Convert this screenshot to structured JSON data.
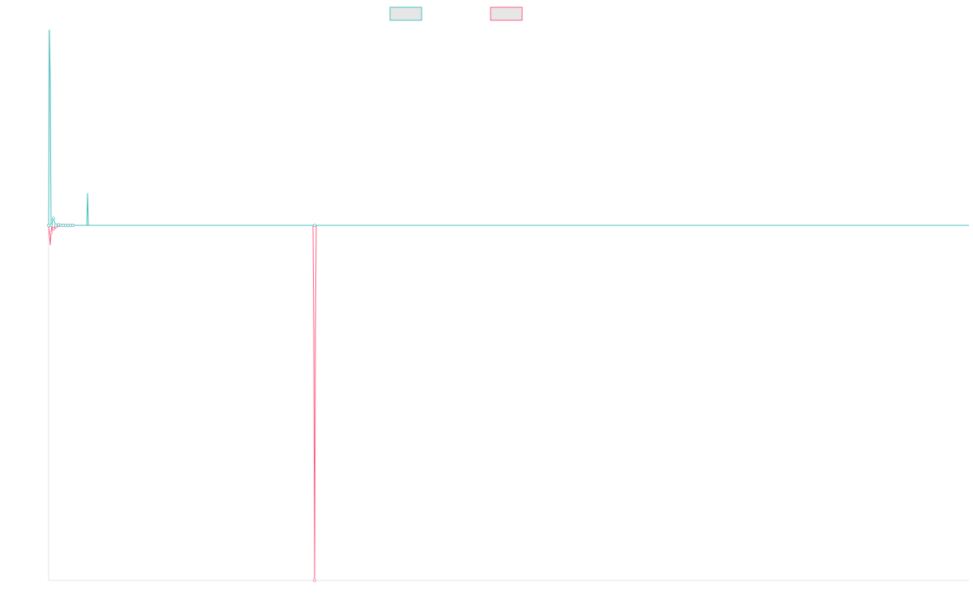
{
  "chart_data": {
    "type": "line",
    "title": "",
    "xlabel": "",
    "ylabel": "",
    "grid": false,
    "legend_position": "top-center",
    "x": [
      0,
      1,
      2,
      3,
      4,
      5,
      6,
      7,
      8,
      9,
      10,
      11,
      12,
      13,
      14,
      15,
      16,
      17,
      18,
      19,
      20,
      21,
      22,
      23,
      24,
      25,
      26,
      27,
      28,
      29,
      30,
      40,
      60,
      80,
      100,
      120,
      140,
      160,
      180,
      200,
      220,
      240,
      260,
      280,
      300,
      320,
      326,
      327,
      328,
      329,
      330,
      340,
      360,
      400,
      500,
      600,
      700,
      800,
      900,
      1000,
      1100,
      1135
    ],
    "xlim": [
      0,
      1135
    ],
    "ylim": [
      -1.0,
      0.55
    ],
    "series": [
      {
        "color": "#4bc0c0",
        "values": [
          0.0,
          0.55,
          0.4,
          0.0,
          -0.005,
          0.02,
          0.02,
          0.01,
          0.005,
          0.0,
          0.0,
          0.0,
          0.003,
          0.002,
          0.0,
          0.0,
          0.0,
          0.0,
          0.0,
          0.0,
          0.0,
          0.0,
          0.0,
          0.0,
          0.0,
          0.0,
          0.0,
          0.0,
          0.0,
          0.0,
          0.0,
          0.0,
          0.0,
          0.0,
          0.0,
          0.0,
          0.0,
          0.0,
          0.0,
          0.0,
          0.0,
          0.0,
          0.0,
          0.0,
          0.0,
          0.0,
          0.0,
          0.0,
          0.0,
          0.0,
          0.0,
          0.0,
          0.0,
          0.0,
          0.0,
          0.0,
          0.0,
          0.0,
          0.0,
          0.0,
          0.0,
          0.0
        ]
      },
      {
        "color": "#ff6384",
        "values": [
          0.0,
          -0.03,
          -0.055,
          -0.02,
          0.0,
          -0.015,
          -0.01,
          -0.005,
          -0.008,
          -0.004,
          -0.003,
          -0.002,
          -0.001,
          0.0,
          0.0,
          0.0,
          0.0,
          0.0,
          0.0,
          0.0,
          0.0,
          0.0,
          0.0,
          0.0,
          0.0,
          0.0,
          0.0,
          0.0,
          0.0,
          0.0,
          0.0,
          0.0,
          0.0,
          0.0,
          0.0,
          0.0,
          0.0,
          0.0,
          0.0,
          0.0,
          0.0,
          0.0,
          0.0,
          0.0,
          0.0,
          0.0,
          0.0,
          -0.3,
          -1.0,
          -0.3,
          0.0,
          0.0,
          0.0,
          0.0,
          0.0,
          0.0,
          0.0,
          0.0,
          0.0,
          0.0,
          0.0,
          0.0
        ]
      }
    ],
    "extra_spikes": [
      {
        "series": 0,
        "x": 48,
        "y": 0.09
      }
    ]
  }
}
